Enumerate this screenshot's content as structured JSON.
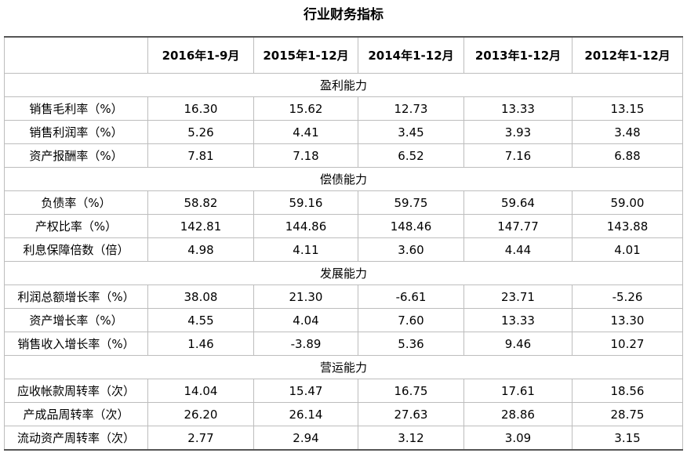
{
  "title": "行业财务指标",
  "columns": [
    "",
    "2016年1-9月",
    "2015年1-12月",
    "2014年1-12月",
    "2013年1-12月",
    "2012年1-12月"
  ],
  "sections": [
    {
      "name": "盈利能力",
      "rows": [
        {
          "label": "销售毛利率（%）",
          "values": [
            "16.30",
            "15.62",
            "12.73",
            "13.33",
            "13.15"
          ]
        },
        {
          "label": "销售利润率（%）",
          "values": [
            "5.26",
            "4.41",
            "3.45",
            "3.93",
            "3.48"
          ]
        },
        {
          "label": "资产报酬率（%）",
          "values": [
            "7.81",
            "7.18",
            "6.52",
            "7.16",
            "6.88"
          ]
        }
      ]
    },
    {
      "name": "偿债能力",
      "rows": [
        {
          "label": "负债率（%）",
          "values": [
            "58.82",
            "59.16",
            "59.75",
            "59.64",
            "59.00"
          ]
        },
        {
          "label": "产权比率（%）",
          "values": [
            "142.81",
            "144.86",
            "148.46",
            "147.77",
            "143.88"
          ]
        },
        {
          "label": "利息保障倍数（倍）",
          "values": [
            "4.98",
            "4.11",
            "3.60",
            "4.44",
            "4.01"
          ]
        }
      ]
    },
    {
      "name": "发展能力",
      "rows": [
        {
          "label": "利润总额增长率（%）",
          "values": [
            "38.08",
            "21.30",
            "-6.61",
            "23.71",
            "-5.26"
          ]
        },
        {
          "label": "资产增长率（%）",
          "values": [
            "4.55",
            "4.04",
            "7.60",
            "13.33",
            "13.30"
          ]
        },
        {
          "label": "销售收入增长率（%）",
          "values": [
            "1.46",
            "-3.89",
            "5.36",
            "9.46",
            "10.27"
          ]
        }
      ]
    },
    {
      "name": "营运能力",
      "rows": [
        {
          "label": "应收帐款周转率（次）",
          "values": [
            "14.04",
            "15.47",
            "16.75",
            "17.61",
            "18.56"
          ]
        },
        {
          "label": "产成品周转率（次）",
          "values": [
            "26.20",
            "26.14",
            "27.63",
            "28.86",
            "28.75"
          ]
        },
        {
          "label": "流动资产周转率（次）",
          "values": [
            "2.77",
            "2.94",
            "3.12",
            "3.09",
            "3.15"
          ]
        }
      ]
    }
  ]
}
